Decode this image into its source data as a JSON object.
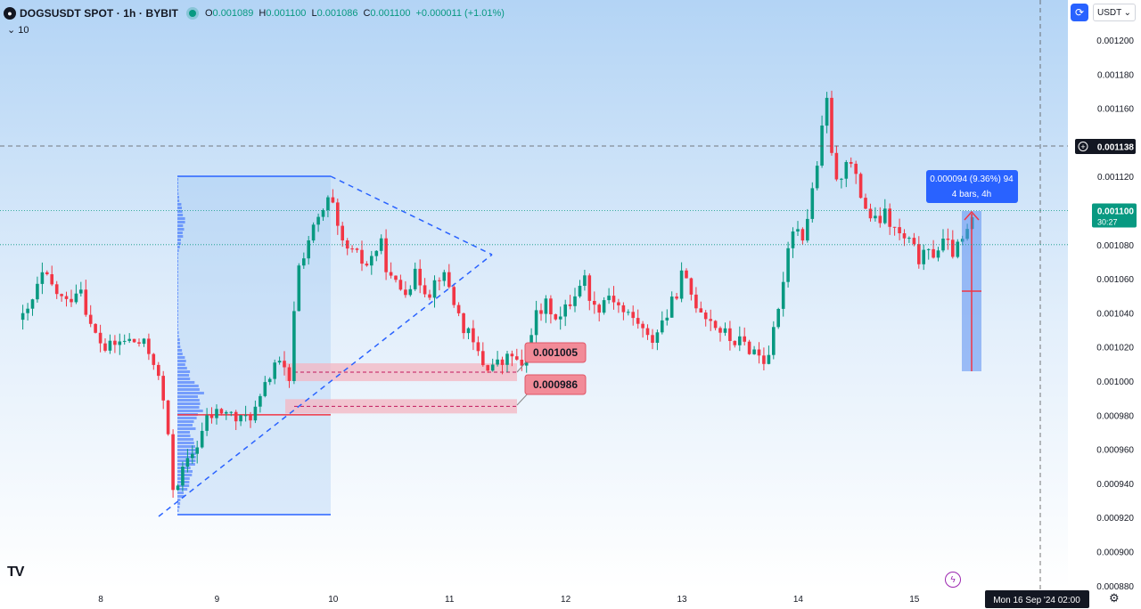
{
  "header": {
    "symbol": "DOGSUSDT SPOT · 1h · BYBIT",
    "open_key": "O",
    "open": "0.001089",
    "high_key": "H",
    "high": "0.001100",
    "low_key": "L",
    "low": "0.001086",
    "close_key": "C",
    "close": "0.001100",
    "change": "+0.000011 (+1.01%)",
    "volume_label": "10",
    "currency": "USDT"
  },
  "colors": {
    "up": "#089981",
    "down": "#f23645",
    "accent": "#2962ff"
  },
  "chart_data": {
    "type": "candlestick",
    "ylim": [
      0.00088,
      0.00121
    ],
    "y_ticks": [
      "0.001200",
      "0.001180",
      "0.001160",
      "0.001140",
      "0.001120",
      "0.001100",
      "0.001080",
      "0.001060",
      "0.001040",
      "0.001020",
      "0.001000",
      "0.000980",
      "0.000960",
      "0.000940",
      "0.000920",
      "0.000900",
      "0.000880"
    ],
    "x_ticks": [
      "8",
      "9",
      "10",
      "11",
      "12",
      "13",
      "14",
      "15"
    ],
    "crosshair_price": "0.001138",
    "last_price": "0.001100",
    "countdown": "30:27",
    "crosshair_time": "Mon 16 Sep '24  02:00",
    "annotations": {
      "level_1": "0.001005",
      "level_2": "0.000986",
      "measure": "0.000094 (9.36%) 94",
      "measure_sub": "4 bars, 4h"
    },
    "series": [
      {
        "keypoints": [
          [
            7.35,
            1.036
          ],
          [
            7.5,
            1.062
          ],
          [
            7.7,
            1.045
          ],
          [
            7.82,
            1.058
          ],
          [
            7.92,
            1.03
          ],
          [
            8.05,
            1.018
          ],
          [
            8.2,
            1.024
          ],
          [
            8.35,
            1.022
          ],
          [
            8.45,
            1.014
          ],
          [
            8.55,
            0.985
          ],
          [
            8.62,
            0.938
          ],
          [
            8.72,
            0.948
          ],
          [
            8.82,
            0.962
          ],
          [
            8.92,
            0.978
          ],
          [
            9.05,
            0.983
          ],
          [
            9.2,
            0.976
          ],
          [
            9.35,
            0.984
          ],
          [
            9.5,
            1.012
          ],
          [
            9.58,
            1.005
          ],
          [
            9.62,
            0.995
          ],
          [
            9.68,
            1.062
          ],
          [
            9.78,
            1.082
          ],
          [
            9.88,
            1.095
          ],
          [
            9.98,
            1.108
          ],
          [
            10.05,
            1.082
          ],
          [
            10.15,
            1.075
          ],
          [
            10.3,
            1.068
          ],
          [
            10.4,
            1.082
          ],
          [
            10.5,
            1.058
          ],
          [
            10.6,
            1.054
          ],
          [
            10.72,
            1.062
          ],
          [
            10.82,
            1.052
          ],
          [
            10.92,
            1.064
          ],
          [
            11.0,
            1.055
          ],
          [
            11.08,
            1.038
          ],
          [
            11.18,
            1.024
          ],
          [
            11.3,
            1.009
          ],
          [
            11.45,
            1.01
          ],
          [
            11.55,
            1.016
          ],
          [
            11.62,
            1.005
          ],
          [
            11.72,
            1.036
          ],
          [
            11.85,
            1.045
          ],
          [
            11.95,
            1.036
          ],
          [
            12.05,
            1.048
          ],
          [
            12.15,
            1.062
          ],
          [
            12.25,
            1.042
          ],
          [
            12.38,
            1.052
          ],
          [
            12.5,
            1.04
          ],
          [
            12.62,
            1.035
          ],
          [
            12.72,
            1.022
          ],
          [
            12.82,
            1.034
          ],
          [
            12.9,
            1.042
          ],
          [
            13.0,
            1.062
          ],
          [
            13.1,
            1.048
          ],
          [
            13.2,
            1.04
          ],
          [
            13.3,
            1.032
          ],
          [
            13.4,
            1.025
          ],
          [
            13.52,
            1.022
          ],
          [
            13.62,
            1.018
          ],
          [
            13.72,
            1.012
          ],
          [
            13.82,
            1.034
          ],
          [
            13.88,
            1.066
          ],
          [
            13.95,
            1.092
          ],
          [
            14.05,
            1.085
          ],
          [
            14.15,
            1.122
          ],
          [
            14.25,
            1.165
          ],
          [
            14.32,
            1.112
          ],
          [
            14.42,
            1.133
          ],
          [
            14.55,
            1.107
          ],
          [
            14.65,
            1.092
          ],
          [
            14.75,
            1.097
          ],
          [
            14.85,
            1.086
          ],
          [
            14.95,
            1.081
          ],
          [
            15.05,
            1.071
          ],
          [
            15.15,
            1.075
          ],
          [
            15.25,
            1.081
          ],
          [
            15.35,
            1.075
          ],
          [
            15.45,
            1.086
          ],
          [
            15.52,
            1.1
          ]
        ]
      }
    ]
  }
}
